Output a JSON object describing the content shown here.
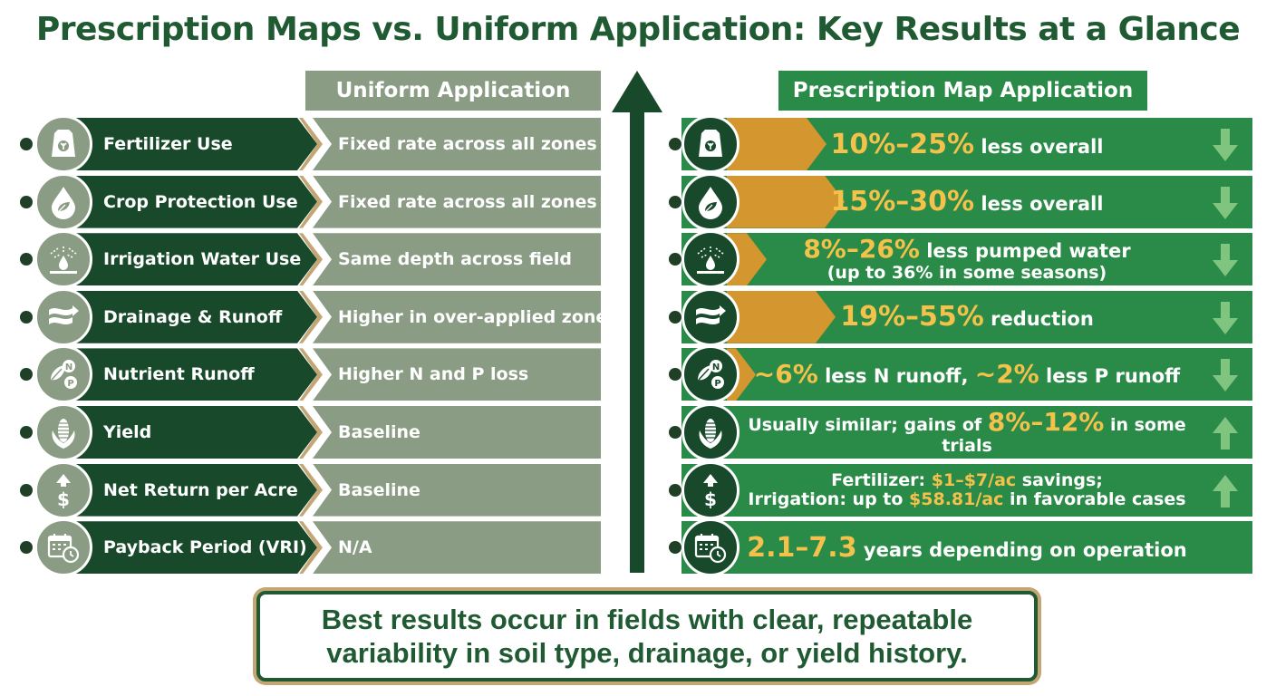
{
  "title": "Prescription Maps vs. Uniform Application: Key Results at a Glance",
  "headers": {
    "uniform": "Uniform Application",
    "prescription": "Prescription Map Application"
  },
  "colors": {
    "dark_green": "#17492a",
    "bright_green": "#2a8a48",
    "sage": "#8a9c84",
    "gold_text": "#f4c14a",
    "gold_arrow": "#d4962e",
    "tan": "#c4a574"
  },
  "rows": [
    {
      "label": "Fertilizer Use",
      "icon": "fertilizer-bag-icon",
      "uniform": "Fixed rate across all zones",
      "pre": {
        "highlight": "10%–25%",
        "text": " less overall"
      },
      "trend": "down",
      "bar_fraction": 0.45
    },
    {
      "label": "Crop Protection Use",
      "icon": "droplet-leaf-icon",
      "uniform": "Fixed rate across all zones",
      "pre": {
        "highlight": "15%–30%",
        "text": " less overall"
      },
      "trend": "down",
      "bar_fraction": 0.55
    },
    {
      "label": "Irrigation Water Use",
      "icon": "irrigation-icon",
      "uniform": "Same depth across field",
      "pre": {
        "highlight": "8%–26%",
        "text": " less pumped water",
        "sub": "(up to 36% in some seasons)"
      },
      "trend": "down",
      "bar_fraction": 0.12
    },
    {
      "label": "Drainage & Runoff",
      "icon": "drainage-waves-icon",
      "uniform": "Higher in over-applied zones",
      "pre": {
        "highlight": "19%–55%",
        "text": " reduction"
      },
      "trend": "down",
      "bar_fraction": 0.5
    },
    {
      "label": "Nutrient Runoff",
      "icon": "nutrient-np-icon",
      "uniform": "Higher N and P loss",
      "pre": {
        "p1": "~6%",
        "t1": " less N runoff, ",
        "p2": "~2%",
        "t2": " less P runoff"
      },
      "trend": "down",
      "bar_fraction": 0.06
    },
    {
      "label": "Yield",
      "icon": "corn-icon",
      "uniform": "Baseline",
      "pre": {
        "t0": "Usually similar; gains of ",
        "highlight": "8%–12%",
        "text": " in some trials"
      },
      "trend": "up",
      "bar_fraction": 0
    },
    {
      "label": "Net Return per Acre",
      "icon": "dollar-up-icon",
      "uniform": "Baseline",
      "pre": {
        "l1a": "Fertilizer: ",
        "l1b": "$1–$7/ac",
        "l1c": " savings;",
        "l2a": "Irrigation: up to ",
        "l2b": "$58.81/ac",
        "l2c": " in favorable cases"
      },
      "trend": "up",
      "bar_fraction": 0
    },
    {
      "label": "Payback Period (VRI)",
      "icon": "calendar-clock-icon",
      "uniform": "N/A",
      "pre": {
        "highlight": "2.1–7.3",
        "text": " years depending on operation"
      },
      "trend": "none",
      "bar_fraction": 0
    }
  ],
  "bottom": {
    "line1": "Best results occur in fields with clear, repeatable",
    "line2": "variability in soil type, drainage, or yield history."
  }
}
